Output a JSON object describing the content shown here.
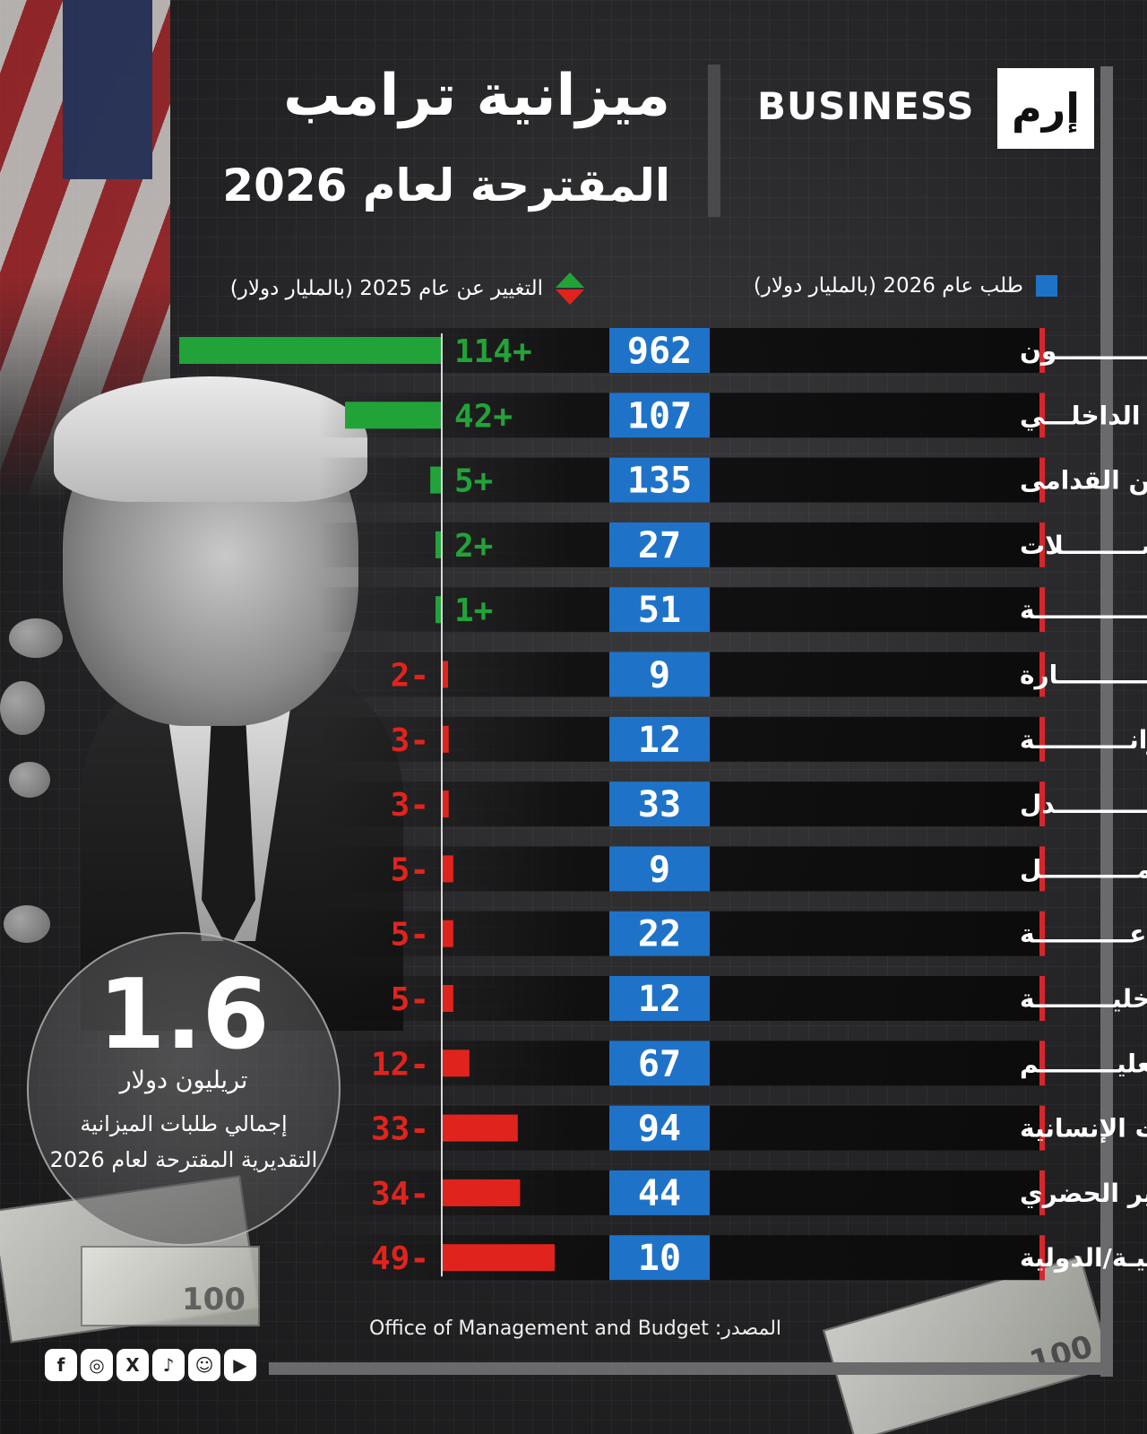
{
  "header": {
    "title_line1": "ميزانية ترامب",
    "title_line2": "المقترحة لعام 2026",
    "brand_text": "BUSINESS",
    "brand_logo_text": "إرم"
  },
  "legend": {
    "request_label": "طلب عام 2026 (بالمليار دولار)",
    "change_label": "التغيير عن عام 2025 (بالمليار دولار)"
  },
  "total": {
    "value": "1.6",
    "unit": "تريليون دولار",
    "description": "إجمالي طلبات الميزانية التقديرية المقترحة لعام 2026"
  },
  "source": "المصدر: Office of Management and Budget",
  "socials": [
    "facebook-icon",
    "instagram-icon",
    "x-icon",
    "tiktok-icon",
    "snapchat-icon",
    "youtube-icon"
  ],
  "colors": {
    "request": "#1e73c9",
    "increase": "#22a33a",
    "decrease": "#e0241d",
    "row_bg": "#0c0c0c",
    "row_accent": "#d7262b"
  },
  "chart_data": {
    "type": "bar",
    "title": "ميزانية ترامب المقترحة لعام 2026",
    "categories": [
      "البنتاغـــــــــــــون",
      "الأمـــن الداخلـــي",
      "شؤون المحاربين القدامى",
      "المواصـــــــــلات",
      "الطاقـــــــــــــة",
      "التجـــــــــــارة",
      "الخزانـــــــــــة",
      "العــــــــــــدل",
      "العمـــــــــــل",
      "الزراعـــــــــــة",
      "الداخليـــــــــة",
      "التعليـــــــــم",
      "الصحة والخدمات الإنسانية",
      "الإسكان والتطوير الحضري",
      "البرامج الحكوميـة/الدولية"
    ],
    "series": [
      {
        "name": "طلب عام 2026 (بالمليار دولار)",
        "values": [
          962,
          107,
          135,
          27,
          51,
          9,
          12,
          33,
          9,
          22,
          12,
          67,
          94,
          44,
          10
        ]
      },
      {
        "name": "التغيير عن عام 2025 (بالمليار دولار)",
        "values": [
          114,
          42,
          5,
          2,
          1,
          -2,
          -3,
          -3,
          -5,
          -5,
          -5,
          -12,
          -33,
          -34,
          -49
        ],
        "labels": [
          "114+",
          "42+",
          "5+",
          "2+",
          "1+",
          "2-",
          "3-",
          "3-",
          "5-",
          "5-",
          "5-",
          "12-",
          "33-",
          "34-",
          "49-"
        ]
      }
    ]
  }
}
